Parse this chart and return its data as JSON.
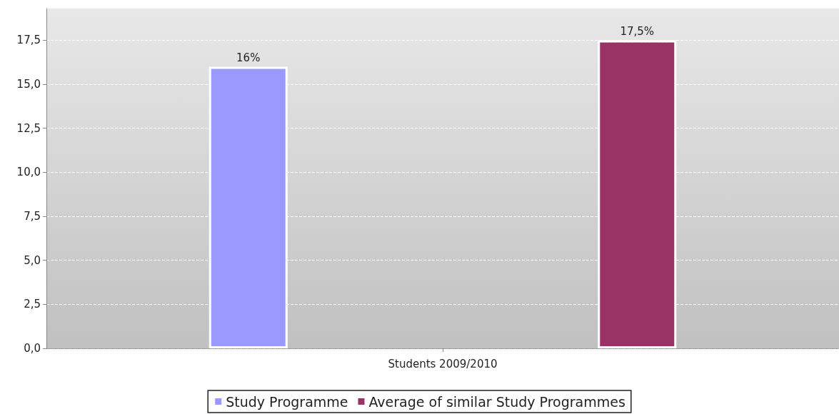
{
  "chart_data": {
    "type": "bar",
    "categories": [
      "Students 2009/2010"
    ],
    "series": [
      {
        "name": "Study Programme",
        "color": "#9999ff",
        "values": [
          16
        ],
        "value_labels": [
          "16%"
        ]
      },
      {
        "name": "Average of similar Study Programmes",
        "color": "#993366",
        "values": [
          17.5
        ],
        "value_labels": [
          "17,5%"
        ]
      }
    ],
    "ylim": [
      0,
      19.3
    ],
    "yticks": [
      {
        "value": 0,
        "label": "0,0"
      },
      {
        "value": 2.5,
        "label": "2,5"
      },
      {
        "value": 5,
        "label": "5,0"
      },
      {
        "value": 7.5,
        "label": "7,5"
      },
      {
        "value": 10,
        "label": "10,0"
      },
      {
        "value": 12.5,
        "label": "12,5"
      },
      {
        "value": 15,
        "label": "15,0"
      },
      {
        "value": 17.5,
        "label": "17,5"
      }
    ],
    "grid": "y",
    "legend": "bottom"
  }
}
